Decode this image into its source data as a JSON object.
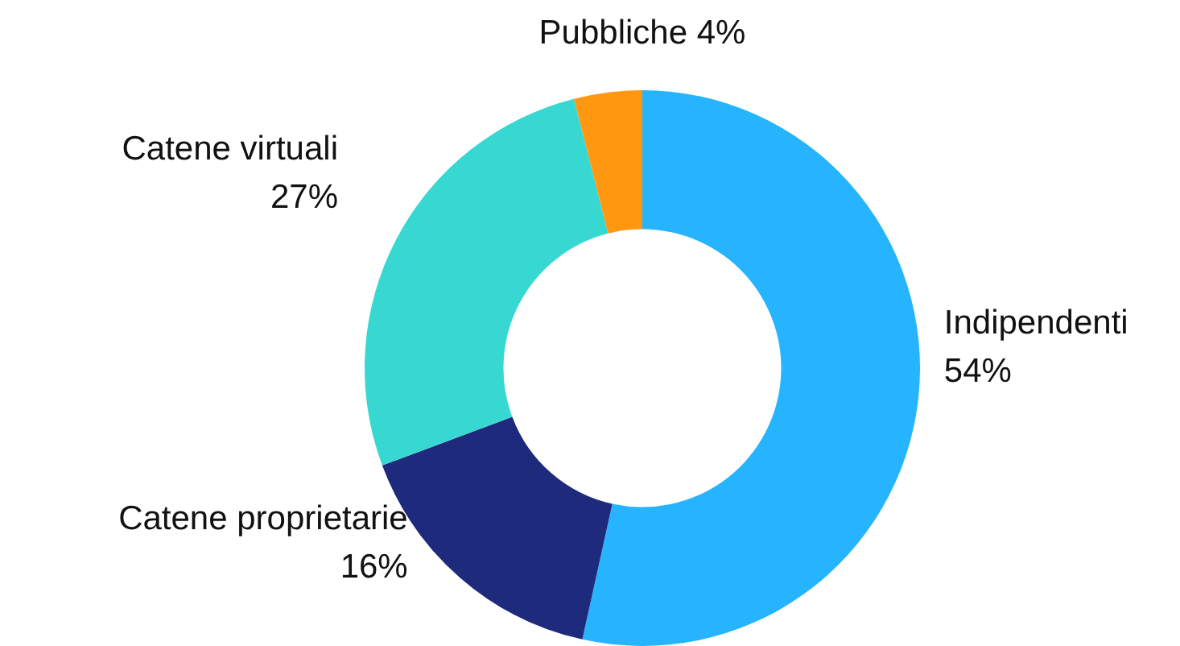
{
  "chart_data": {
    "type": "donut",
    "categories": [
      "Indipendenti",
      "Catene proprietarie",
      "Catene virtuali",
      "Pubbliche"
    ],
    "values": [
      54,
      16,
      27,
      4
    ],
    "colors": [
      "#27b4ff",
      "#1e2a7c",
      "#38d8d2",
      "#ff9810"
    ],
    "value_labels": [
      "54%",
      "16%",
      "27%",
      "4%"
    ],
    "legend": false
  }
}
